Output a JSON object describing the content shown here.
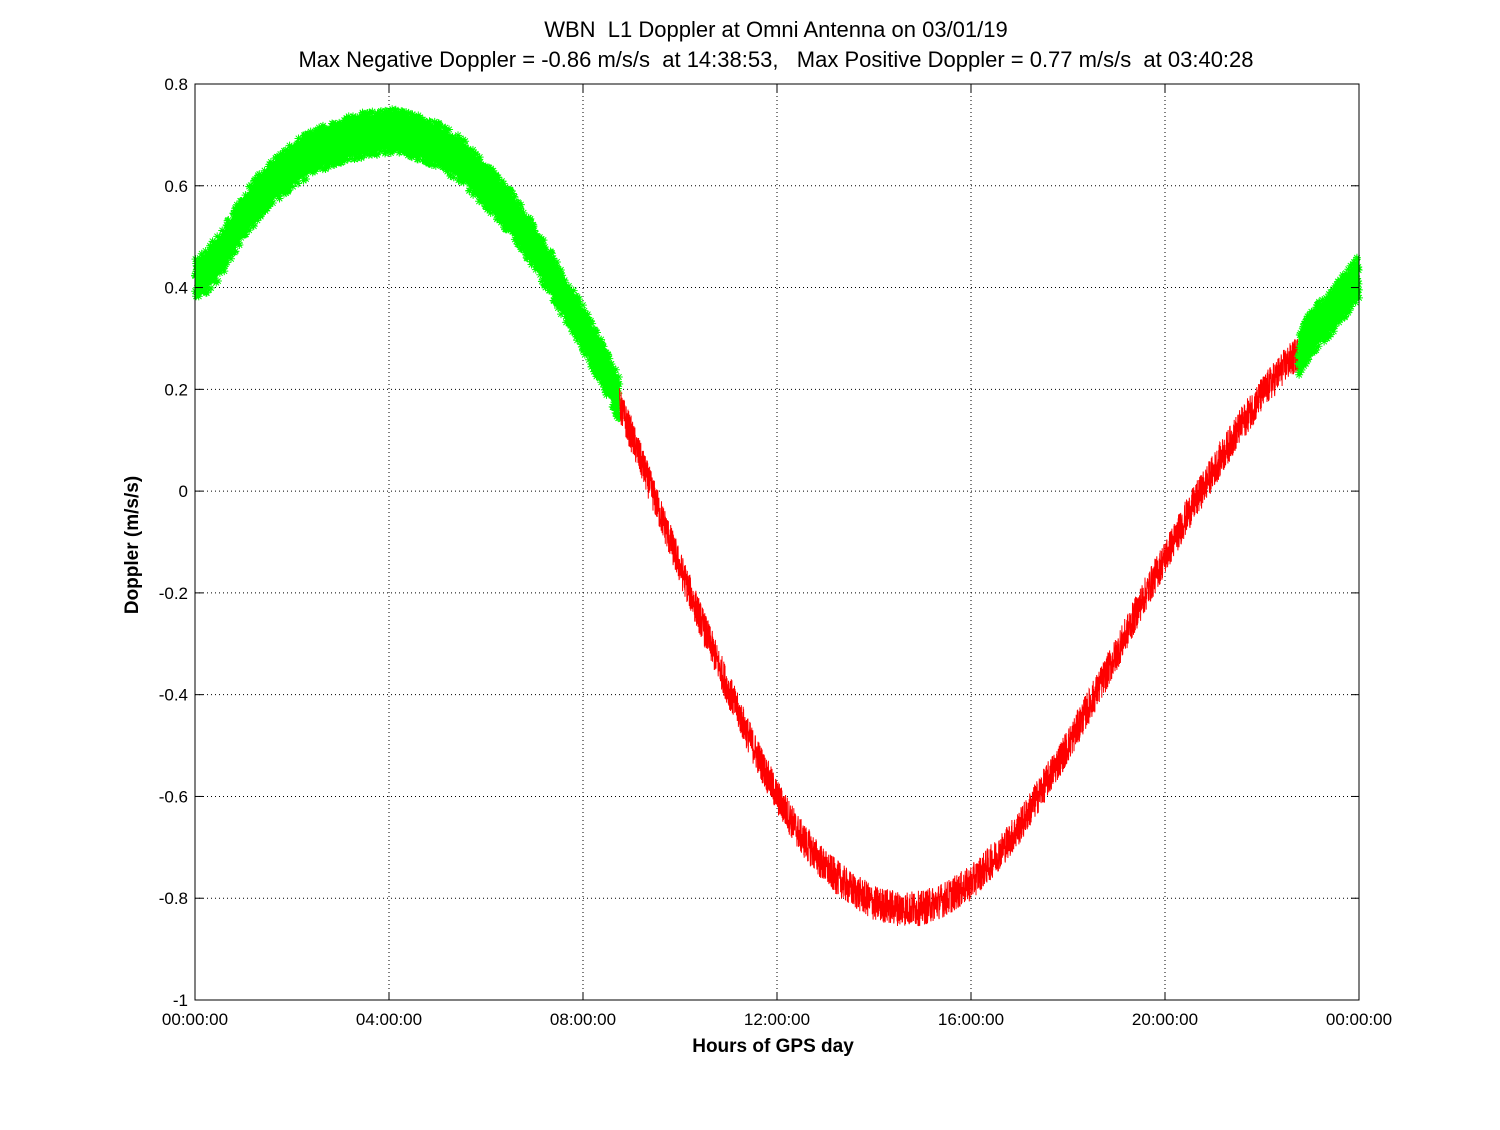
{
  "chart_data": {
    "type": "scatter",
    "title": "WBN  L1 Doppler at Omni Antenna on 03/01/19",
    "subtitle": "Max Negative Doppler = -0.86 m/s/s  at 14:38:53,   Max Positive Doppler = 0.77 m/s/s  at 03:40:28",
    "xlabel": "Hours of GPS day",
    "ylabel": "Doppler (m/s/s)",
    "xlim": [
      0,
      24
    ],
    "ylim": [
      -1,
      0.8
    ],
    "x_ticks": [
      0,
      4,
      8,
      12,
      16,
      20,
      24
    ],
    "x_tick_labels": [
      "00:00:00",
      "04:00:00",
      "08:00:00",
      "12:00:00",
      "16:00:00",
      "20:00:00",
      "00:00:00"
    ],
    "y_ticks": [
      0.8,
      0.6,
      0.4,
      0.2,
      0,
      -0.2,
      -0.4,
      -0.6,
      -0.8,
      -1
    ],
    "y_tick_labels": [
      "0.8",
      "0.6",
      "0.4",
      "0.2",
      "0",
      "-0.2",
      "-0.4",
      "-0.6",
      "-0.8",
      "-1"
    ],
    "grid": true,
    "series": [
      {
        "color": "#00ff00",
        "marker": "star",
        "x": [
          0.0,
          0.5,
          1.0,
          1.5,
          2.0,
          2.5,
          3.0,
          3.5,
          4.0,
          4.5,
          5.0,
          5.5,
          6.0,
          6.5,
          7.0,
          7.5,
          8.0,
          8.5,
          8.75
        ],
        "y": [
          0.41,
          0.46,
          0.54,
          0.6,
          0.64,
          0.67,
          0.69,
          0.7,
          0.71,
          0.7,
          0.68,
          0.65,
          0.6,
          0.55,
          0.48,
          0.4,
          0.32,
          0.23,
          0.18
        ],
        "spread": 0.045
      },
      {
        "color": "#ff0000",
        "marker": "line",
        "x": [
          8.75,
          9.0,
          9.5,
          10.0,
          10.5,
          11.0,
          11.5,
          12.0,
          12.5,
          13.0,
          13.5,
          14.0,
          14.5,
          15.0,
          15.5,
          16.0,
          16.5,
          17.0,
          17.5,
          18.0,
          18.5,
          19.0,
          19.5,
          20.0,
          20.5,
          21.0,
          21.5,
          22.0,
          22.5,
          22.75
        ],
        "y": [
          0.17,
          0.11,
          -0.02,
          -0.15,
          -0.27,
          -0.39,
          -0.5,
          -0.6,
          -0.68,
          -0.74,
          -0.78,
          -0.81,
          -0.82,
          -0.82,
          -0.8,
          -0.77,
          -0.72,
          -0.66,
          -0.58,
          -0.5,
          -0.41,
          -0.32,
          -0.22,
          -0.13,
          -0.04,
          0.04,
          0.12,
          0.19,
          0.25,
          0.27
        ],
        "spread": 0.035
      },
      {
        "color": "#00ff00",
        "marker": "star",
        "x": [
          22.75,
          23.0,
          23.5,
          24.0
        ],
        "y": [
          0.27,
          0.31,
          0.36,
          0.42
        ],
        "spread": 0.045
      }
    ]
  }
}
